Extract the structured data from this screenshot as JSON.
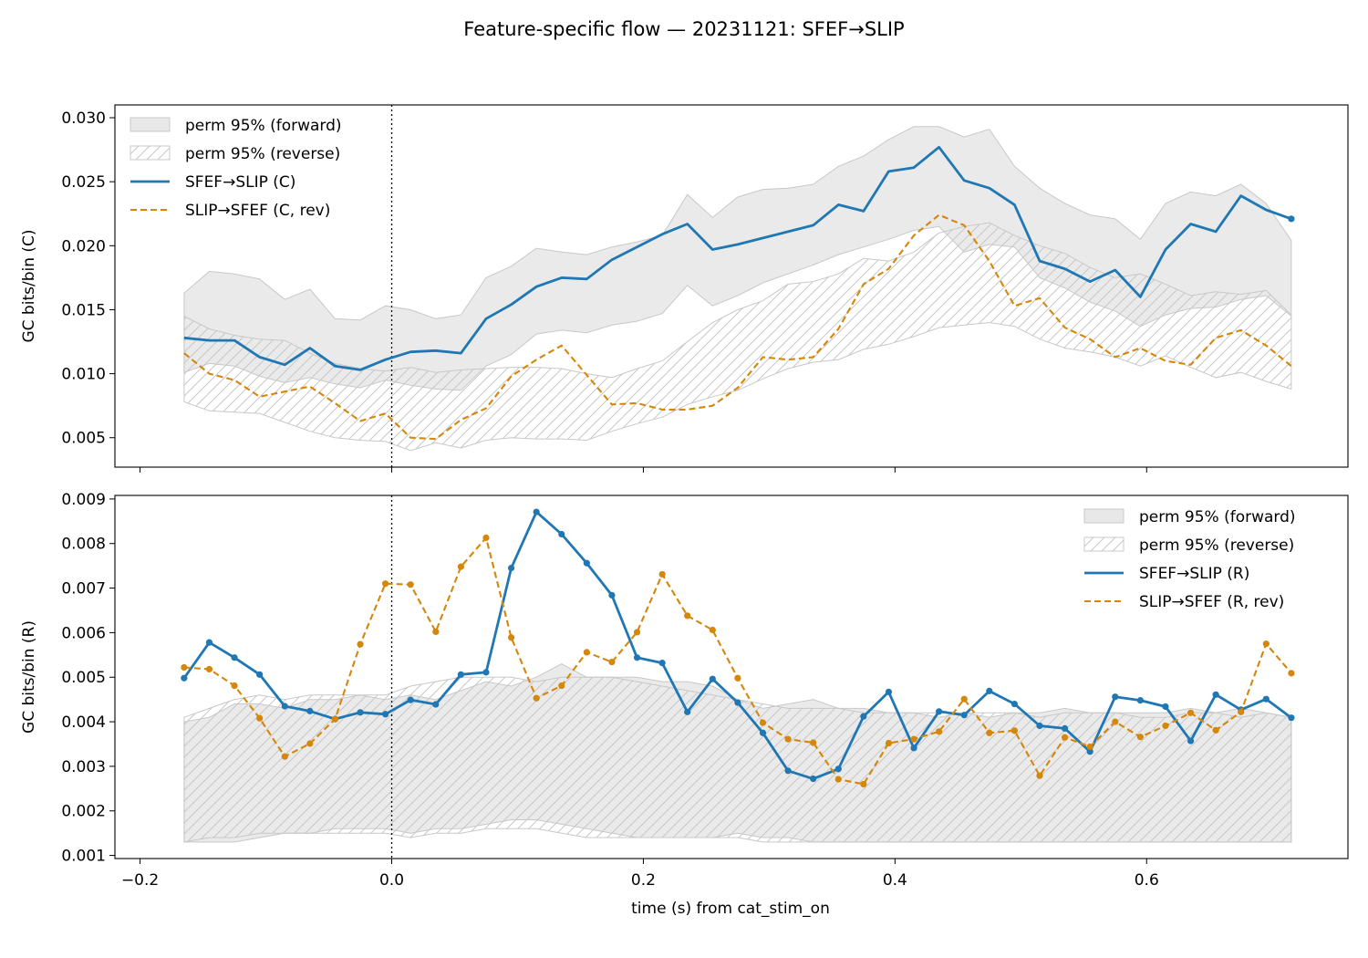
{
  "title": "Feature-specific flow — 20231121: SFEF→SLIP",
  "xlabel": "time (s) from cat_stim_on",
  "colors": {
    "forward": "#1f77b4",
    "reverse": "#d4870a",
    "band_fill": "#e8e8e8",
    "band_edge": "#c8c8c8",
    "hatch": "#c8c8c8"
  },
  "chart_data": [
    {
      "type": "line",
      "ylabel": "GC bits/bin (C)",
      "xlim": [
        -0.22,
        0.76
      ],
      "ylim": [
        0.0027,
        0.031
      ],
      "yticks": [
        0.005,
        0.01,
        0.015,
        0.02,
        0.025,
        0.03
      ],
      "ytick_labels": [
        "0.005",
        "0.010",
        "0.015",
        "0.020",
        "0.025",
        "0.030"
      ],
      "xticks": [
        -0.2,
        0.0,
        0.2,
        0.4,
        0.6
      ],
      "xtick_labels": [],
      "vline_x": 0.0,
      "legend_position": "upper-left",
      "markers_on_all_points": false,
      "x": [
        -0.165,
        -0.145,
        -0.125,
        -0.105,
        -0.085,
        -0.065,
        -0.045,
        -0.025,
        -0.005,
        0.015,
        0.035,
        0.055,
        0.075,
        0.095,
        0.115,
        0.135,
        0.155,
        0.175,
        0.195,
        0.215,
        0.235,
        0.255,
        0.275,
        0.295,
        0.315,
        0.335,
        0.355,
        0.375,
        0.395,
        0.415,
        0.435,
        0.455,
        0.475,
        0.495,
        0.515,
        0.535,
        0.555,
        0.575,
        0.595,
        0.615,
        0.635,
        0.655,
        0.675,
        0.695,
        0.715
      ],
      "bands": [
        {
          "name": "perm 95% (forward)",
          "style": "filled",
          "upper": [
            0.0163,
            0.018,
            0.0178,
            0.0174,
            0.0158,
            0.0166,
            0.0143,
            0.0142,
            0.0153,
            0.015,
            0.0143,
            0.0146,
            0.0175,
            0.0184,
            0.0198,
            0.0195,
            0.0193,
            0.0199,
            0.0203,
            0.0208,
            0.024,
            0.0222,
            0.0238,
            0.0244,
            0.0245,
            0.0248,
            0.0262,
            0.027,
            0.0283,
            0.0293,
            0.0293,
            0.0285,
            0.0291,
            0.0262,
            0.0245,
            0.0233,
            0.0224,
            0.0221,
            0.0205,
            0.0233,
            0.0242,
            0.0239,
            0.0248,
            0.0233,
            0.0204
          ],
          "lower": [
            0.0101,
            0.0108,
            0.0106,
            0.0098,
            0.0093,
            0.0097,
            0.0092,
            0.0089,
            0.0095,
            0.0091,
            0.0088,
            0.0087,
            0.0106,
            0.0115,
            0.0131,
            0.0134,
            0.0132,
            0.0138,
            0.0141,
            0.0147,
            0.0169,
            0.0153,
            0.0161,
            0.0171,
            0.0178,
            0.0185,
            0.0193,
            0.0199,
            0.0205,
            0.0212,
            0.0215,
            0.0195,
            0.0201,
            0.0199,
            0.0175,
            0.0167,
            0.0156,
            0.0149,
            0.0137,
            0.0146,
            0.0151,
            0.0152,
            0.0158,
            0.0161,
            0.0145
          ]
        },
        {
          "name": "perm 95% (reverse)",
          "style": "hatched",
          "upper": [
            0.0145,
            0.0135,
            0.013,
            0.0127,
            0.0126,
            0.0116,
            0.0108,
            0.0104,
            0.0102,
            0.0105,
            0.0101,
            0.0103,
            0.0104,
            0.0105,
            0.0105,
            0.0104,
            0.01,
            0.0097,
            0.0104,
            0.011,
            0.0125,
            0.014,
            0.015,
            0.0157,
            0.017,
            0.0172,
            0.0178,
            0.019,
            0.0188,
            0.0195,
            0.021,
            0.0215,
            0.0218,
            0.0208,
            0.02,
            0.0194,
            0.0183,
            0.0175,
            0.0178,
            0.017,
            0.0161,
            0.0164,
            0.0162,
            0.0165,
            0.0146
          ],
          "lower": [
            0.0078,
            0.0071,
            0.007,
            0.0069,
            0.0062,
            0.0055,
            0.005,
            0.0048,
            0.0047,
            0.004,
            0.0046,
            0.0042,
            0.0048,
            0.005,
            0.0049,
            0.0049,
            0.0048,
            0.0055,
            0.0061,
            0.0066,
            0.0076,
            0.0082,
            0.0087,
            0.0096,
            0.0104,
            0.0109,
            0.0111,
            0.0119,
            0.0123,
            0.0129,
            0.0136,
            0.0138,
            0.014,
            0.0137,
            0.0127,
            0.012,
            0.0117,
            0.0113,
            0.0106,
            0.0114,
            0.0105,
            0.0097,
            0.0101,
            0.0094,
            0.0088
          ]
        }
      ],
      "series": [
        {
          "name": "SFEF→SLIP (C)",
          "style": "solid",
          "values": [
            0.0128,
            0.0126,
            0.0126,
            0.0113,
            0.0107,
            0.012,
            0.0106,
            0.0103,
            0.0111,
            0.0117,
            0.0118,
            0.0116,
            0.0143,
            0.0154,
            0.0168,
            0.0175,
            0.0174,
            0.0189,
            0.0199,
            0.0209,
            0.0217,
            0.0197,
            0.0201,
            0.0206,
            0.0211,
            0.0216,
            0.0232,
            0.0227,
            0.0258,
            0.0261,
            0.0277,
            0.0251,
            0.0245,
            0.0232,
            0.0188,
            0.0182,
            0.0172,
            0.0181,
            0.016,
            0.0197,
            0.0217,
            0.0211,
            0.0239,
            0.0228,
            0.0221
          ]
        },
        {
          "name": "SLIP→SFEF (C, rev)",
          "style": "dashed",
          "values": [
            0.0116,
            0.01,
            0.0095,
            0.0082,
            0.0086,
            0.009,
            0.0077,
            0.0063,
            0.0069,
            0.005,
            0.0049,
            0.0064,
            0.0073,
            0.0098,
            0.0111,
            0.0122,
            0.0099,
            0.0076,
            0.0077,
            0.0072,
            0.0072,
            0.0075,
            0.0089,
            0.0113,
            0.0111,
            0.0113,
            0.0135,
            0.017,
            0.0182,
            0.0208,
            0.0224,
            0.0216,
            0.0188,
            0.0153,
            0.0159,
            0.0136,
            0.0127,
            0.0113,
            0.012,
            0.011,
            0.0107,
            0.0128,
            0.0134,
            0.0122,
            0.0106
          ]
        }
      ]
    },
    {
      "type": "line",
      "ylabel": "GC bits/bin (R)",
      "xlim": [
        -0.22,
        0.76
      ],
      "ylim": [
        0.00093,
        0.00908
      ],
      "yticks": [
        0.001,
        0.002,
        0.003,
        0.004,
        0.005,
        0.006,
        0.007,
        0.008,
        0.009
      ],
      "ytick_labels": [
        "0.001",
        "0.002",
        "0.003",
        "0.004",
        "0.005",
        "0.006",
        "0.007",
        "0.008",
        "0.009"
      ],
      "xticks": [
        -0.2,
        0.0,
        0.2,
        0.4,
        0.6
      ],
      "xtick_labels": [
        "−0.2",
        "0.0",
        "0.2",
        "0.4",
        "0.6"
      ],
      "vline_x": 0.0,
      "legend_position": "upper-right",
      "markers_on_all_points": true,
      "x": [
        -0.165,
        -0.145,
        -0.125,
        -0.105,
        -0.085,
        -0.065,
        -0.045,
        -0.025,
        -0.005,
        0.015,
        0.035,
        0.055,
        0.075,
        0.095,
        0.115,
        0.135,
        0.155,
        0.175,
        0.195,
        0.215,
        0.235,
        0.255,
        0.275,
        0.295,
        0.315,
        0.335,
        0.355,
        0.375,
        0.395,
        0.415,
        0.435,
        0.455,
        0.475,
        0.495,
        0.515,
        0.535,
        0.555,
        0.575,
        0.595,
        0.615,
        0.635,
        0.655,
        0.675,
        0.695,
        0.715
      ],
      "bands": [
        {
          "name": "perm 95% (forward)",
          "style": "filled",
          "upper": [
            0.004,
            0.0041,
            0.0044,
            0.0044,
            0.0043,
            0.0045,
            0.0045,
            0.0046,
            0.0045,
            0.0046,
            0.0045,
            0.0047,
            0.0049,
            0.0048,
            0.005,
            0.0053,
            0.005,
            0.005,
            0.005,
            0.0049,
            0.0049,
            0.0048,
            0.0045,
            0.0043,
            0.0044,
            0.0045,
            0.0043,
            0.0043,
            0.0042,
            0.0042,
            0.0041,
            0.0042,
            0.0041,
            0.0042,
            0.0042,
            0.0043,
            0.0042,
            0.0042,
            0.0042,
            0.0042,
            0.0043,
            0.0042,
            0.0043,
            0.0042,
            0.0041
          ],
          "lower": [
            0.0013,
            0.0013,
            0.0013,
            0.0014,
            0.0015,
            0.0015,
            0.0016,
            0.0016,
            0.0016,
            0.0015,
            0.0016,
            0.0016,
            0.0017,
            0.0018,
            0.0018,
            0.0017,
            0.0016,
            0.0015,
            0.0014,
            0.0014,
            0.0014,
            0.0014,
            0.0015,
            0.0014,
            0.0014,
            0.0013,
            0.0013,
            0.0013,
            0.0013,
            0.0013,
            0.0013,
            0.0013,
            0.0013,
            0.0013,
            0.0013,
            0.0013,
            0.0013,
            0.0013,
            0.0013,
            0.0013,
            0.0013,
            0.0013,
            0.0013,
            0.0013,
            0.0013
          ]
        },
        {
          "name": "perm 95% (reverse)",
          "style": "hatched",
          "upper": [
            0.0041,
            0.0043,
            0.0045,
            0.0046,
            0.0045,
            0.0046,
            0.0046,
            0.0046,
            0.0046,
            0.0048,
            0.0049,
            0.005,
            0.005,
            0.005,
            0.0049,
            0.005,
            0.005,
            0.005,
            0.0049,
            0.0048,
            0.0047,
            0.0046,
            0.0045,
            0.0044,
            0.0043,
            0.0043,
            0.0043,
            0.0042,
            0.0042,
            0.0042,
            0.0042,
            0.0042,
            0.0042,
            0.0042,
            0.0041,
            0.0042,
            0.0042,
            0.0042,
            0.0041,
            0.0041,
            0.0042,
            0.0042,
            0.0041,
            0.0042,
            0.0041
          ],
          "lower": [
            0.0013,
            0.0014,
            0.0014,
            0.0015,
            0.0015,
            0.0015,
            0.0015,
            0.0015,
            0.0015,
            0.0014,
            0.0015,
            0.0015,
            0.0016,
            0.0016,
            0.0016,
            0.0015,
            0.0014,
            0.0014,
            0.0014,
            0.0014,
            0.0014,
            0.0014,
            0.0014,
            0.0013,
            0.0013,
            0.0013,
            0.0013,
            0.0013,
            0.0013,
            0.0013,
            0.0013,
            0.0013,
            0.0013,
            0.0013,
            0.0013,
            0.0013,
            0.0013,
            0.0013,
            0.0013,
            0.0013,
            0.0013,
            0.0013,
            0.0013,
            0.0013,
            0.0013
          ]
        }
      ],
      "series": [
        {
          "name": "SFEF→SLIP (R)",
          "style": "solid",
          "values": [
            0.00498,
            0.00578,
            0.00544,
            0.00506,
            0.00435,
            0.00424,
            0.00406,
            0.00421,
            0.00417,
            0.00449,
            0.00439,
            0.00506,
            0.00511,
            0.00745,
            0.00871,
            0.00821,
            0.00756,
            0.00684,
            0.00544,
            0.00532,
            0.00422,
            0.00496,
            0.00443,
            0.00375,
            0.0029,
            0.00272,
            0.00294,
            0.00412,
            0.00467,
            0.00341,
            0.00423,
            0.00415,
            0.00469,
            0.0044,
            0.00391,
            0.00385,
            0.00333,
            0.00456,
            0.00448,
            0.00434,
            0.00357,
            0.00461,
            0.00427,
            0.00451,
            0.00409
          ]
        },
        {
          "name": "SLIP→SFEF (R, rev)",
          "style": "dashed",
          "values": [
            0.00522,
            0.00518,
            0.00481,
            0.00408,
            0.00322,
            0.00351,
            0.00406,
            0.00574,
            0.0071,
            0.00708,
            0.00602,
            0.00748,
            0.00813,
            0.00589,
            0.00453,
            0.00481,
            0.00556,
            0.00534,
            0.00601,
            0.00731,
            0.00638,
            0.00606,
            0.00498,
            0.00398,
            0.00361,
            0.00353,
            0.00271,
            0.0026,
            0.00352,
            0.00361,
            0.00378,
            0.00451,
            0.00375,
            0.0038,
            0.00279,
            0.00365,
            0.00344,
            0.004,
            0.00366,
            0.00391,
            0.0042,
            0.00381,
            0.00422,
            0.00575,
            0.00509
          ]
        }
      ]
    }
  ]
}
